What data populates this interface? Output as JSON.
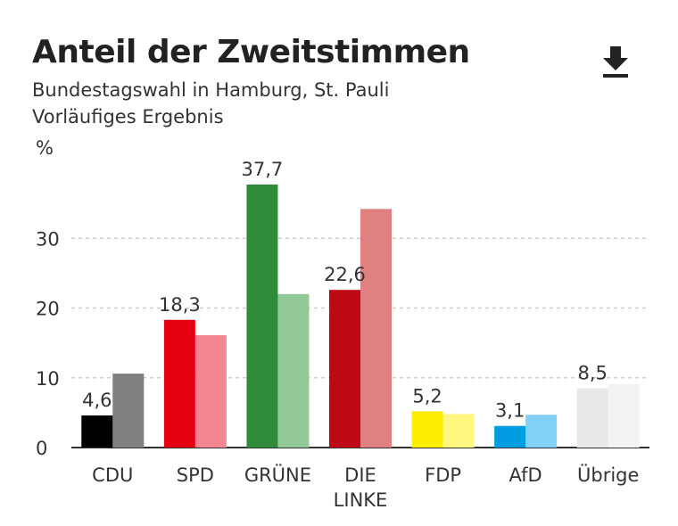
{
  "header": {
    "title": "Anteil der Zweitstimmen",
    "subtitle_line1": "Bundestagswahl in Hamburg, St. Pauli",
    "subtitle_line2": "Vorläufiges Ergebnis",
    "download_icon": "download-icon"
  },
  "chart_data": {
    "type": "bar",
    "ylabel": "%",
    "ylim": [
      0,
      40
    ],
    "yticks": [
      0,
      10,
      20,
      30
    ],
    "grid": true,
    "categories": [
      "CDU",
      "SPD",
      "GRÜNE",
      "DIE LINKE",
      "FDP",
      "AfD",
      "Übrige"
    ],
    "category_lines": [
      [
        "CDU"
      ],
      [
        "SPD"
      ],
      [
        "GRÜNE"
      ],
      [
        "DIE",
        "LINKE"
      ],
      [
        "FDP"
      ],
      [
        "AfD"
      ],
      [
        "Übrige"
      ]
    ],
    "series": [
      {
        "values": [
          4.6,
          18.3,
          37.7,
          22.6,
          5.2,
          3.1,
          8.5
        ],
        "labels": [
          "4,6",
          "18,3",
          "37,7",
          "22,6",
          "5,2",
          "3,1",
          "8,5"
        ],
        "colors": [
          "#000000",
          "#e3000f",
          "#2e8b3a",
          "#be0a15",
          "#ffed00",
          "#009ee0",
          "#e8e8e8"
        ]
      },
      {
        "values": [
          10.6,
          16.1,
          22.0,
          34.2,
          4.8,
          4.7,
          9.1
        ],
        "colors": [
          "#808080",
          "#f58590",
          "#93c898",
          "#e08080",
          "#fff780",
          "#80d1f5",
          "#f3f3f3"
        ]
      }
    ]
  }
}
